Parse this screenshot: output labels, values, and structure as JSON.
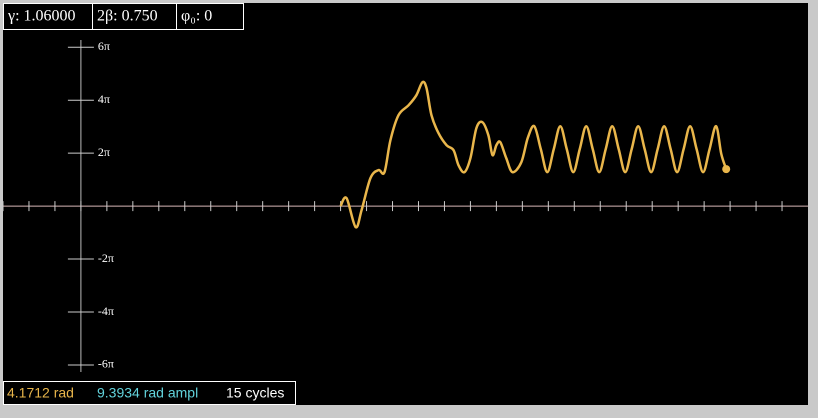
{
  "chart_data": {
    "type": "line",
    "xlim": [
      -3,
      28
    ],
    "ylim": [
      -23.6,
      24.1
    ],
    "xticks": [
      -3,
      -2,
      -1,
      0,
      1,
      2,
      3,
      4,
      5,
      6,
      7,
      8,
      9,
      10,
      11,
      12,
      13,
      14,
      15,
      16,
      17,
      18,
      19,
      20,
      21,
      22,
      23,
      24,
      25,
      26,
      27
    ],
    "yticks": [
      {
        "value": 18.8496,
        "label": "6π"
      },
      {
        "value": 12.5664,
        "label": "4π"
      },
      {
        "value": 6.2832,
        "label": "2π"
      },
      {
        "value": -6.2832,
        "label": "-2π"
      },
      {
        "value": -12.5664,
        "label": "-4π"
      },
      {
        "value": -18.8496,
        "label": "-6π"
      }
    ],
    "series": [
      {
        "color": "#e9b64b",
        "x": [
          10.0,
          10.23,
          10.58,
          10.81,
          11.15,
          11.46,
          11.69,
          11.92,
          12.23,
          12.62,
          12.92,
          13.15,
          13.31,
          13.5,
          13.77,
          14.08,
          14.35,
          14.54,
          14.77,
          15.0,
          15.23,
          15.46,
          15.69,
          15.85,
          16.0,
          16.15,
          16.38,
          16.62,
          16.96,
          17.21,
          17.46,
          17.71,
          17.96,
          18.21,
          18.46,
          18.71,
          18.96,
          19.21,
          19.46,
          19.71,
          19.96,
          20.21,
          20.46,
          20.71,
          20.96,
          21.21,
          21.46,
          21.71,
          21.96,
          22.21,
          22.46,
          22.71,
          22.96,
          23.21,
          23.46,
          23.71,
          23.96,
          24.21,
          24.46,
          24.66,
          24.85
        ],
        "y": [
          0,
          0.95,
          -2.49,
          -0.47,
          3.32,
          4.27,
          4.03,
          7.83,
          10.79,
          11.97,
          13.16,
          14.7,
          13.99,
          10.79,
          8.66,
          7.23,
          6.64,
          4.86,
          4.03,
          5.69,
          9.25,
          9.96,
          8.42,
          6.05,
          7.23,
          7.59,
          5.69,
          4.03,
          5.2,
          8.1,
          9.48,
          6.76,
          4.03,
          6.76,
          9.48,
          6.76,
          4.03,
          6.76,
          9.48,
          6.76,
          4.03,
          6.76,
          9.48,
          6.76,
          4.03,
          6.76,
          9.48,
          6.76,
          4.03,
          6.76,
          9.48,
          6.76,
          4.03,
          6.76,
          9.48,
          6.76,
          4.03,
          6.76,
          9.48,
          6.2,
          4.39
        ]
      }
    ]
  },
  "header": [
    "γ: 1.06000",
    "2β: 0.750",
    "φ₀: 0"
  ],
  "footer": [
    {
      "text": "4.1712 rad",
      "color": "#e9b64b"
    },
    {
      "text": "9.3934 rad ampl",
      "color": "#62d3dc"
    },
    {
      "text": "15 cycles",
      "color": "#ffffff"
    }
  ]
}
